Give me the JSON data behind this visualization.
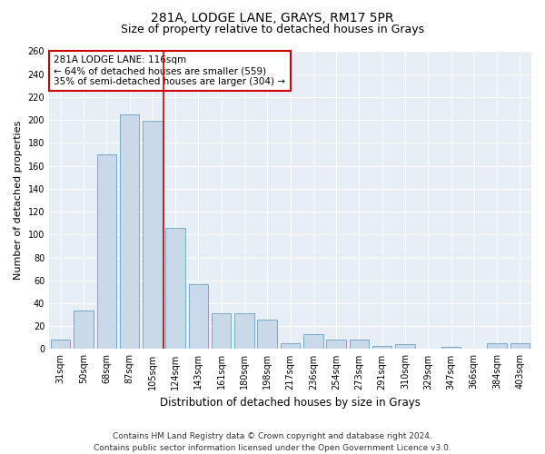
{
  "title": "281A, LODGE LANE, GRAYS, RM17 5PR",
  "subtitle": "Size of property relative to detached houses in Grays",
  "xlabel": "Distribution of detached houses by size in Grays",
  "ylabel": "Number of detached properties",
  "categories": [
    "31sqm",
    "50sqm",
    "68sqm",
    "87sqm",
    "105sqm",
    "124sqm",
    "143sqm",
    "161sqm",
    "180sqm",
    "198sqm",
    "217sqm",
    "236sqm",
    "254sqm",
    "273sqm",
    "291sqm",
    "310sqm",
    "329sqm",
    "347sqm",
    "366sqm",
    "384sqm",
    "403sqm"
  ],
  "values": [
    8,
    34,
    170,
    205,
    199,
    106,
    57,
    31,
    31,
    26,
    5,
    13,
    8,
    8,
    3,
    4,
    0,
    2,
    0,
    5,
    5
  ],
  "bar_color": "#c9d9ea",
  "bar_edge_color": "#7aaac8",
  "fig_bg_color": "#ffffff",
  "plot_bg_color": "#e8eef5",
  "vline_x_index": 4.5,
  "vline_color": "#cc0000",
  "annotation_line1": "281A LODGE LANE: 116sqm",
  "annotation_line2": "← 64% of detached houses are smaller (559)",
  "annotation_line3": "35% of semi-detached houses are larger (304) →",
  "annotation_box_color": "#ffffff",
  "annotation_box_edge": "#cc0000",
  "ylim": [
    0,
    260
  ],
  "yticks": [
    0,
    20,
    40,
    60,
    80,
    100,
    120,
    140,
    160,
    180,
    200,
    220,
    240,
    260
  ],
  "footer_line1": "Contains HM Land Registry data © Crown copyright and database right 2024.",
  "footer_line2": "Contains public sector information licensed under the Open Government Licence v3.0.",
  "title_fontsize": 10,
  "subtitle_fontsize": 9,
  "xlabel_fontsize": 8.5,
  "ylabel_fontsize": 8,
  "tick_fontsize": 7,
  "annotation_fontsize": 7.5,
  "footer_fontsize": 6.5
}
